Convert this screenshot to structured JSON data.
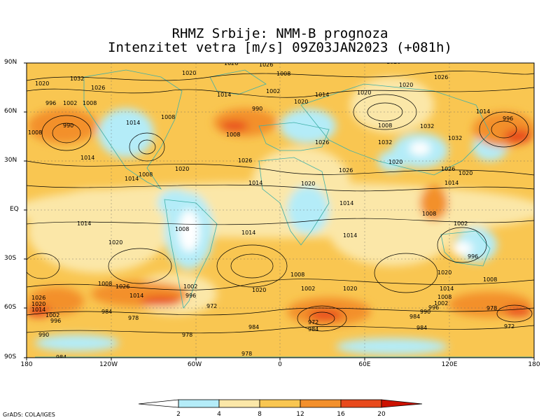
{
  "header": {
    "title": "RHMZ Srbije: NMM-B prognoza",
    "subtitle": "Intenzitet vetra [m/s] 09Z03JAN2023 (+081h)"
  },
  "axes": {
    "lat_labels": [
      "90N",
      "60N",
      "30N",
      "EQ",
      "30S",
      "60S",
      "90S"
    ],
    "lon_labels": [
      "180",
      "120W",
      "60W",
      "0",
      "60E",
      "120E",
      "180"
    ]
  },
  "colorbar": {
    "ticks": [
      "2",
      "4",
      "8",
      "12",
      "16",
      "20"
    ],
    "colors": [
      "#ffffff",
      "#b4ecf8",
      "#fbe7a8",
      "#f9c651",
      "#f3902c",
      "#e84a1c",
      "#cc1100"
    ]
  },
  "pressure_labels": [
    "1032",
    "1026",
    "1020",
    "1014",
    "1008",
    "1002",
    "996",
    "990",
    "984",
    "978",
    "972"
  ],
  "credit": "GrADS: COLA/IGES"
}
